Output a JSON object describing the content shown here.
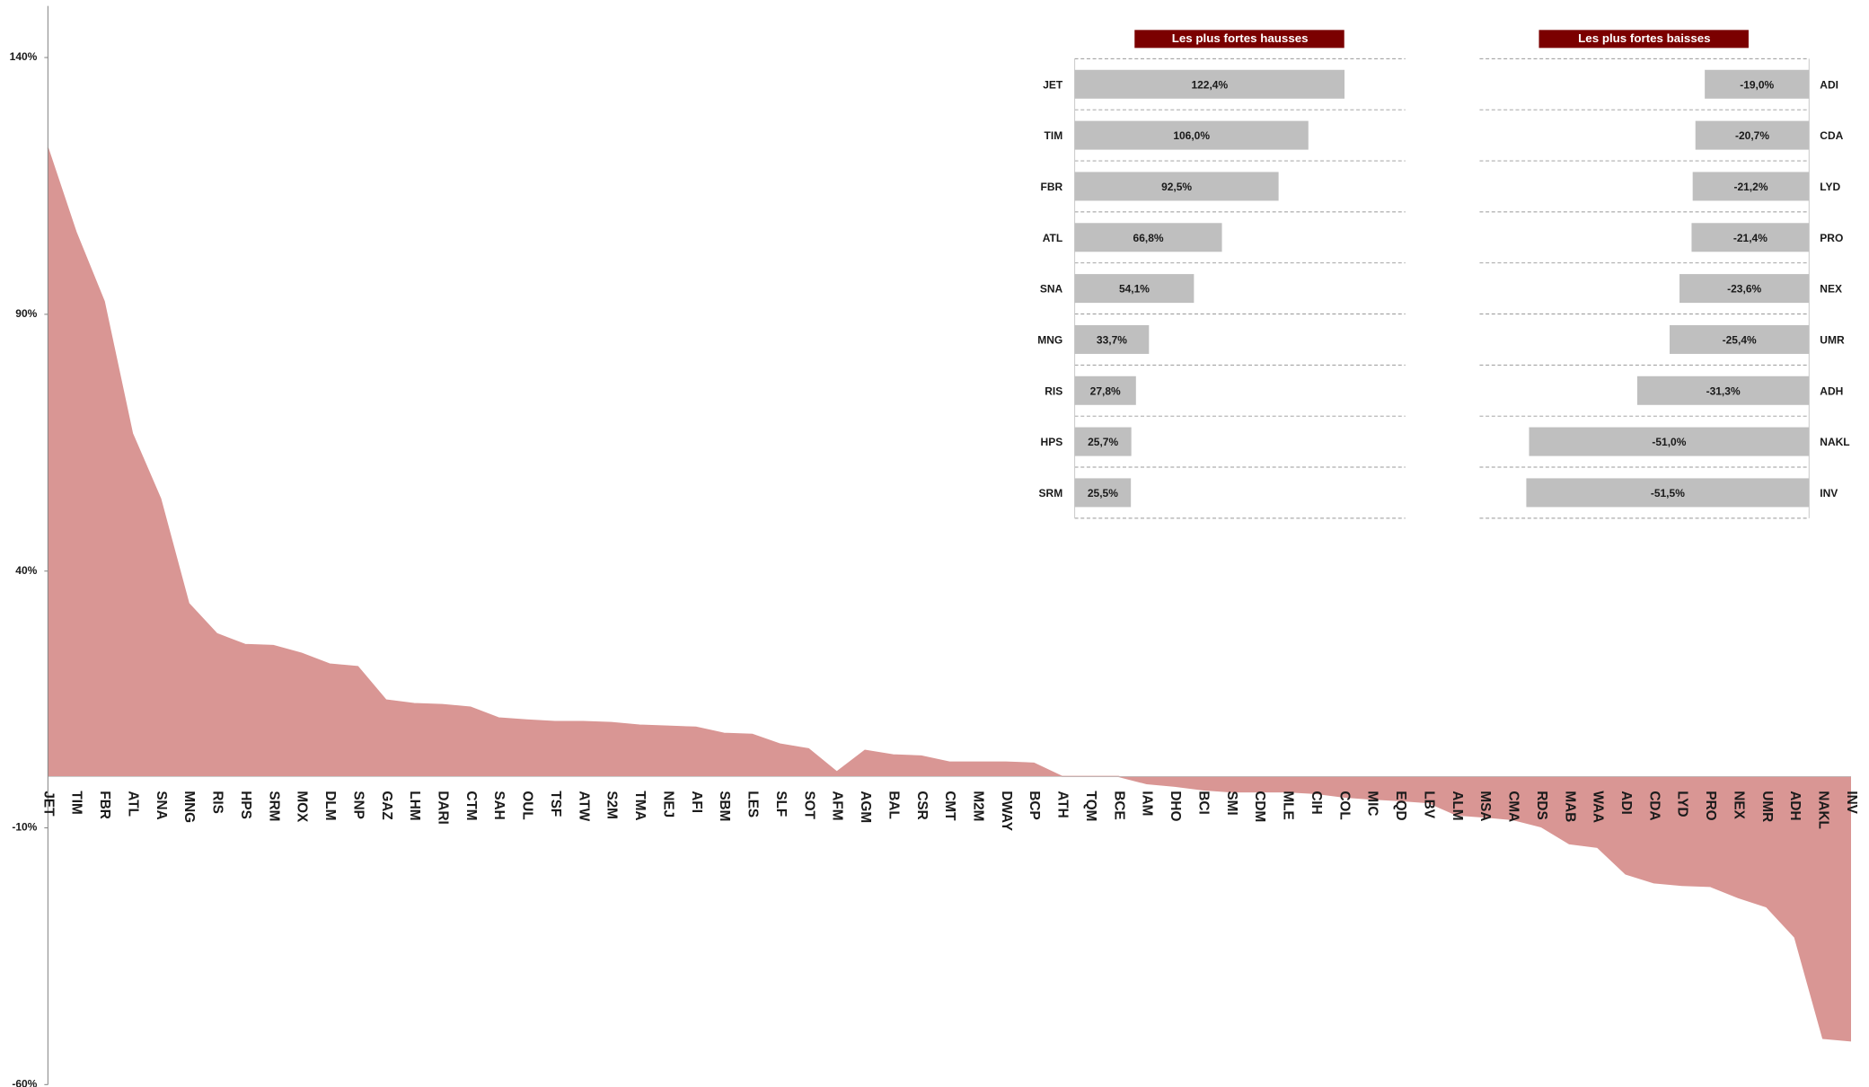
{
  "chart_data": [
    {
      "type": "area",
      "categories": [
        "JET",
        "TIM",
        "FBR",
        "ATL",
        "SNA",
        "MNG",
        "RIS",
        "HPS",
        "SRM",
        "MOX",
        "DLM",
        "SNP",
        "GAZ",
        "LHM",
        "DARI",
        "CTM",
        "SAH",
        "OUL",
        "TSF",
        "ATW",
        "S2M",
        "TMA",
        "NEJ",
        "AFI",
        "SBM",
        "LES",
        "SLF",
        "SOT",
        "AFM",
        "AGM",
        "BAL",
        "CSR",
        "CMT",
        "M2M",
        "DWAY",
        "BCP",
        "ATH",
        "TQM",
        "BCE",
        "IAM",
        "DHO",
        "BCI",
        "SMI",
        "CDM",
        "MLE",
        "CIH",
        "COL",
        "MIC",
        "EQD",
        "LBV",
        "ALM",
        "MSA",
        "CMA",
        "RDS",
        "MAB",
        "WAA",
        "ADI",
        "CDA",
        "LYD",
        "PRO",
        "NEX",
        "UMR",
        "ADH",
        "NAKL",
        "INV"
      ],
      "values": [
        122.4,
        106.0,
        92.5,
        66.8,
        54.1,
        33.7,
        27.8,
        25.7,
        25.5,
        24.0,
        21.9,
        21.4,
        14.9,
        14.2,
        14.0,
        13.5,
        11.4,
        11.0,
        10.7,
        10.7,
        10.5,
        10.0,
        9.8,
        9.6,
        8.4,
        8.2,
        6.3,
        5.4,
        0.9,
        5.1,
        4.2,
        4.0,
        2.8,
        2.8,
        2.8,
        2.6,
        0,
        0,
        0,
        -1.4,
        -1.9,
        -2.6,
        -3.0,
        -3.0,
        -3.0,
        -3.3,
        -4.0,
        -4.4,
        -4.7,
        -5.1,
        -7.5,
        -7.9,
        -8.4,
        -9.8,
        -13.1,
        -13.8,
        -19.0,
        -20.7,
        -21.2,
        -21.4,
        -23.6,
        -25.4,
        -31.3,
        -51.0,
        -51.5
      ],
      "color": "#d99694",
      "ylim": [
        -60,
        140
      ],
      "yticks": [
        {
          "value": -60,
          "label": "-60%"
        },
        {
          "value": -10,
          "label": "-10%"
        },
        {
          "value": 40,
          "label": "40%"
        },
        {
          "value": 90,
          "label": "90%"
        },
        {
          "value": 140,
          "label": "140%"
        }
      ],
      "grid": false
    },
    {
      "type": "bar",
      "orientation": "horizontal",
      "title": "Les plus fortes hausses",
      "categories": [
        "JET",
        "TIM",
        "FBR",
        "ATL",
        "SNA",
        "MNG",
        "RIS",
        "HPS",
        "SRM"
      ],
      "values": [
        122.4,
        106.0,
        92.5,
        66.8,
        54.1,
        33.7,
        27.8,
        25.7,
        25.5
      ],
      "value_labels": [
        "122,4%",
        "106,0%",
        "92,5%",
        "66,8%",
        "54,1%",
        "33,7%",
        "27,8%",
        "25,7%",
        "25,5%"
      ],
      "color": "#bfbfbf",
      "title_color": "#7b0000",
      "xlim": [
        0,
        150
      ]
    },
    {
      "type": "bar",
      "orientation": "horizontal",
      "title": "Les plus fortes baisses",
      "categories": [
        "ADI",
        "CDA",
        "LYD",
        "PRO",
        "NEX",
        "UMR",
        "ADH",
        "NAKL",
        "INV"
      ],
      "values": [
        -19.0,
        -20.7,
        -21.2,
        -21.4,
        -23.6,
        -25.4,
        -31.3,
        -51.0,
        -51.5
      ],
      "value_labels": [
        "-19,0%",
        "-20,7%",
        "-21,2%",
        "-21,4%",
        "-23,6%",
        "-25,4%",
        "-31,3%",
        "-51,0%",
        "-51,5%"
      ],
      "color": "#bfbfbf",
      "title_color": "#7b0000",
      "xlim": [
        -60,
        0
      ]
    }
  ]
}
